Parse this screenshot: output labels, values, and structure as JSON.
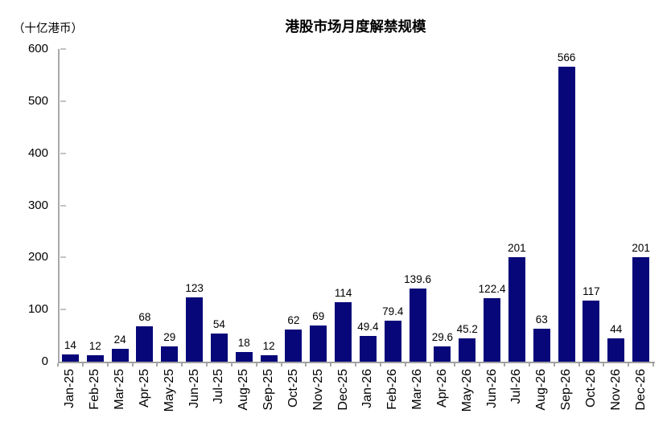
{
  "title": "港股市场月度解禁规模",
  "unit_label": "（十亿港币）",
  "colors": {
    "bar": "#07077a",
    "axis": "#a8a8a8",
    "text": "#000000",
    "background": "#ffffff"
  },
  "chart_data": {
    "type": "bar",
    "title": "港股市场月度解禁规模",
    "xlabel": "",
    "ylabel": "（十亿港币）",
    "categories": [
      "Jan-25",
      "Feb-25",
      "Mar-25",
      "Apr-25",
      "May-25",
      "Jun-25",
      "Jul-25",
      "Aug-25",
      "Sep-25",
      "Oct-25",
      "Nov-25",
      "Dec-25",
      "Jan-26",
      "Feb-26",
      "Mar-26",
      "Apr-26",
      "May-26",
      "Jun-26",
      "Jul-26",
      "Aug-26",
      "Sep-26",
      "Oct-26",
      "Nov-26",
      "Dec-26"
    ],
    "values": [
      14,
      12,
      24,
      68,
      29,
      123,
      54,
      18,
      12,
      62,
      69,
      114,
      49.4,
      79.4,
      139.6,
      29.6,
      45.2,
      122.4,
      201,
      63,
      566,
      117,
      44,
      201
    ],
    "data_labels_shown": true,
    "ylim": [
      0,
      600
    ],
    "ytick_interval": 100,
    "yticks": [
      0,
      100,
      200,
      300,
      400,
      500,
      600
    ],
    "grid": false,
    "legend_position": "none",
    "bar_color": "#07077a",
    "x_label_rotation_degrees": 90
  }
}
